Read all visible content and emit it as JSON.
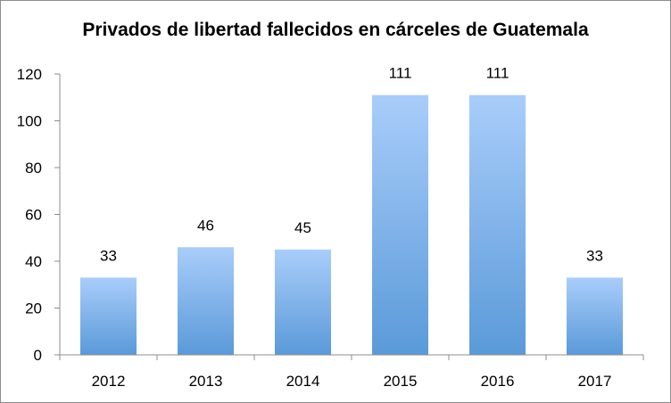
{
  "chart_data": {
    "type": "bar",
    "title": "Privados de libertad fallecidos en cárceles de Guatemala",
    "categories": [
      "2012",
      "2013",
      "2014",
      "2015",
      "2016",
      "2017"
    ],
    "values": [
      33,
      46,
      45,
      111,
      111,
      33
    ],
    "data_labels": [
      "33",
      "46",
      "45",
      "111",
      "111",
      "33"
    ],
    "xlabel": "",
    "ylabel": "",
    "ylim": [
      0,
      120
    ],
    "yticks": [
      0,
      20,
      40,
      60,
      80,
      100,
      120
    ],
    "ytick_labels": [
      "0",
      "20",
      "40",
      "60",
      "80",
      "100",
      "120"
    ],
    "grid": false,
    "legend": "none",
    "colors": {
      "bar_top": "#a9cdfa",
      "bar_bottom": "#5a9ad9",
      "axis": "#8c8c8c",
      "border": "#8c8c8c"
    }
  }
}
